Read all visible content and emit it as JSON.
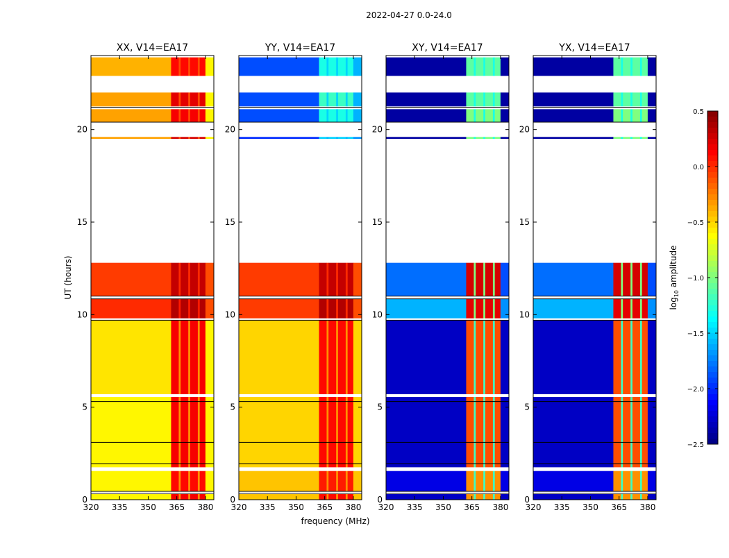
{
  "chart_data": {
    "type": "heatmap",
    "suptitle": "2022-04-27 0.0-24.0",
    "xlabel": "frequency (MHz)",
    "ylabel": "UT (hours)",
    "xlim": [
      320,
      384.4
    ],
    "ylim": [
      0,
      24
    ],
    "xticks": [
      "320",
      "335",
      "350",
      "365",
      "380"
    ],
    "xtick_values": [
      320,
      335,
      350,
      365,
      380
    ],
    "yticks": [
      "0",
      "5",
      "10",
      "15",
      "20"
    ],
    "ytick_values": [
      0,
      5,
      10,
      15,
      20
    ],
    "colorbar": {
      "label_prefix": "log",
      "label_sub": "10",
      "label_suffix": " amplitude",
      "range": [
        -2.5,
        0.5
      ],
      "ticks": [
        "0.5",
        "0.0",
        "−0.5",
        "−1.0",
        "−1.5",
        "−2.0",
        "−2.5"
      ],
      "tick_values": [
        0.5,
        0.0,
        -0.5,
        -1.0,
        -1.5,
        -2.0,
        -2.5
      ],
      "colormap": "jet"
    },
    "time_segments": [
      [
        0.0,
        0.3
      ],
      [
        0.45,
        1.55
      ],
      [
        1.75,
        5.55
      ],
      [
        5.7,
        9.7
      ],
      [
        9.8,
        10.85
      ],
      [
        11.0,
        12.8
      ],
      [
        19.5,
        19.6
      ],
      [
        20.4,
        21.1
      ],
      [
        21.25,
        22.0
      ],
      [
        22.9,
        23.9
      ]
    ],
    "freq_bands": [
      {
        "range": [
          320,
          362
        ],
        "kind": "base"
      },
      {
        "range": [
          362,
          366
        ],
        "kind": "rfi"
      },
      {
        "range": [
          366,
          367
        ],
        "kind": "gap"
      },
      {
        "range": [
          367,
          371
        ],
        "kind": "rfi"
      },
      {
        "range": [
          371,
          372
        ],
        "kind": "gap"
      },
      {
        "range": [
          372,
          376
        ],
        "kind": "rfi"
      },
      {
        "range": [
          376,
          377
        ],
        "kind": "gap"
      },
      {
        "range": [
          377,
          380
        ],
        "kind": "rfi"
      },
      {
        "range": [
          380,
          384.4
        ],
        "kind": "edge"
      }
    ],
    "flag_lines": [
      0.35,
      0.45,
      1.95,
      3.1,
      5.3,
      9.7,
      10.85,
      11.0,
      21.2,
      20.4
    ],
    "panels": [
      {
        "title": "XX, V14=EA17",
        "values": {
          "base": [
            -0.6,
            -0.6,
            -0.6,
            -0.55,
            0.0,
            -0.05,
            -0.35,
            -0.35,
            -0.35,
            -0.4
          ],
          "rfi": [
            0.15,
            0.1,
            0.15,
            0.15,
            0.35,
            0.3,
            0.25,
            0.15,
            0.2,
            0.1
          ],
          "gap": [
            -0.3,
            -0.3,
            -0.3,
            -0.3,
            0.05,
            0.0,
            -0.1,
            -0.1,
            -0.1,
            -0.1
          ],
          "edge": [
            -0.6,
            -0.6,
            -0.6,
            -0.6,
            -0.1,
            -0.1,
            -0.6,
            -0.6,
            -0.6,
            -0.6
          ]
        }
      },
      {
        "title": "YY, V14=EA17",
        "values": {
          "base": [
            -0.45,
            -0.45,
            -0.5,
            -0.5,
            -0.05,
            -0.05,
            -2.0,
            -1.9,
            -1.9,
            -1.9
          ],
          "rfi": [
            0.1,
            0.05,
            0.1,
            0.1,
            0.35,
            0.3,
            -1.5,
            -1.3,
            -1.2,
            -1.3
          ],
          "gap": [
            -0.3,
            -0.3,
            -0.3,
            -0.3,
            0.0,
            0.0,
            -1.6,
            -1.5,
            -1.5,
            -1.5
          ],
          "edge": [
            -0.45,
            -0.45,
            -0.5,
            -0.5,
            -0.1,
            -0.1,
            -1.7,
            -1.6,
            -1.6,
            -1.6
          ]
        }
      },
      {
        "title": "XY, V14=EA17",
        "values": {
          "base": [
            -2.3,
            -2.2,
            -2.3,
            -2.3,
            -1.6,
            -1.8,
            -2.4,
            -2.4,
            -2.4,
            -2.4
          ],
          "rfi": [
            -0.3,
            -0.3,
            -0.1,
            -0.1,
            0.2,
            0.25,
            -1.0,
            -1.0,
            -1.1,
            -1.1
          ],
          "gap": [
            -1.2,
            -1.2,
            -1.2,
            -1.2,
            -1.0,
            -1.0,
            -1.3,
            -1.3,
            -1.3,
            -1.3
          ],
          "edge": [
            -2.3,
            -2.2,
            -2.3,
            -2.3,
            -1.7,
            -1.9,
            -2.4,
            -2.4,
            -2.4,
            -2.4
          ]
        }
      },
      {
        "title": "YX, V14=EA17",
        "values": {
          "base": [
            -2.3,
            -2.2,
            -2.3,
            -2.3,
            -1.6,
            -1.8,
            -2.4,
            -2.4,
            -2.4,
            -2.4
          ],
          "rfi": [
            -0.3,
            -0.3,
            -0.1,
            -0.1,
            0.2,
            0.25,
            -1.0,
            -1.0,
            -1.1,
            -1.1
          ],
          "gap": [
            -1.2,
            -1.2,
            -1.2,
            -1.2,
            -1.0,
            -1.0,
            -1.3,
            -1.3,
            -1.3,
            -1.3
          ],
          "edge": [
            -2.3,
            -2.2,
            -2.3,
            -2.3,
            -1.7,
            -1.9,
            -2.4,
            -2.4,
            -2.4,
            -2.4
          ]
        }
      }
    ]
  }
}
